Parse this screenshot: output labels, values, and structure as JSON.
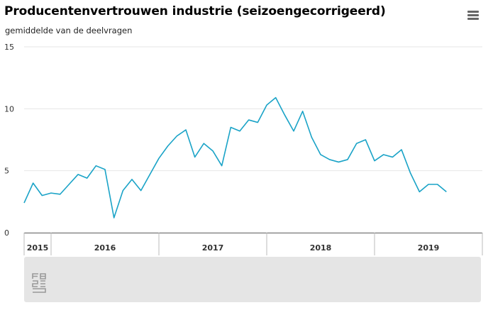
{
  "header": {
    "title": "Producentenvertrouwen industrie (seizoengecorrigeerd)",
    "subtitle": "gemiddelde van de deelvragen",
    "menu_icon": "hamburger-menu-icon"
  },
  "footer": {
    "logo_icon": "cbs-logo-icon"
  },
  "colors": {
    "line": "#1aa3c7",
    "grid": "#e6e6e6",
    "axis_label": "#333333",
    "year_separator": "#bbbbbb"
  },
  "chart_data": {
    "type": "line",
    "title": "Producentenvertrouwen industrie (seizoengecorrigeerd)",
    "subtitle": "gemiddelde van de deelvragen",
    "xlabel": "",
    "ylabel": "",
    "ylim": [
      0,
      15
    ],
    "yticks": [
      0,
      5,
      10,
      15
    ],
    "grid": true,
    "x_start": "2015-10",
    "x_end": "2019-12",
    "years": [
      {
        "label": "2015",
        "months": [
          "2015-10",
          "2015-11",
          "2015-12"
        ]
      },
      {
        "label": "2016",
        "months": [
          "2016-01",
          "2016-12"
        ]
      },
      {
        "label": "2017",
        "months": [
          "2017-01",
          "2017-12"
        ]
      },
      {
        "label": "2018",
        "months": [
          "2018-01",
          "2018-12"
        ]
      },
      {
        "label": "2019",
        "months": [
          "2019-01",
          "2019-12"
        ]
      }
    ],
    "series": [
      {
        "x": [
          "2015-10",
          "2015-11",
          "2015-12",
          "2016-01",
          "2016-02",
          "2016-03",
          "2016-04",
          "2016-05",
          "2016-06",
          "2016-07",
          "2016-08",
          "2016-09",
          "2016-10",
          "2016-11",
          "2016-12",
          "2017-01",
          "2017-02",
          "2017-03",
          "2017-04",
          "2017-05",
          "2017-06",
          "2017-07",
          "2017-08",
          "2017-09",
          "2017-10",
          "2017-11",
          "2017-12",
          "2018-01",
          "2018-02",
          "2018-03",
          "2018-04",
          "2018-05",
          "2018-06",
          "2018-07",
          "2018-08",
          "2018-09",
          "2018-10",
          "2018-11",
          "2018-12",
          "2019-01",
          "2019-02",
          "2019-03",
          "2019-04",
          "2019-05",
          "2019-06",
          "2019-07",
          "2019-08",
          "2019-09"
        ],
        "values": [
          2.4,
          4.0,
          3.0,
          3.2,
          3.1,
          3.9,
          4.7,
          4.4,
          5.4,
          5.1,
          1.2,
          3.4,
          4.3,
          3.4,
          4.7,
          6.0,
          7.0,
          7.8,
          8.3,
          6.1,
          7.2,
          6.6,
          5.4,
          8.5,
          8.2,
          9.1,
          8.9,
          10.3,
          10.9,
          9.5,
          8.2,
          9.8,
          7.7,
          6.3,
          5.9,
          5.7,
          5.9,
          7.2,
          7.5,
          5.8,
          6.3,
          6.1,
          6.7,
          4.8,
          3.3,
          3.9,
          3.9,
          3.3
        ]
      }
    ]
  }
}
